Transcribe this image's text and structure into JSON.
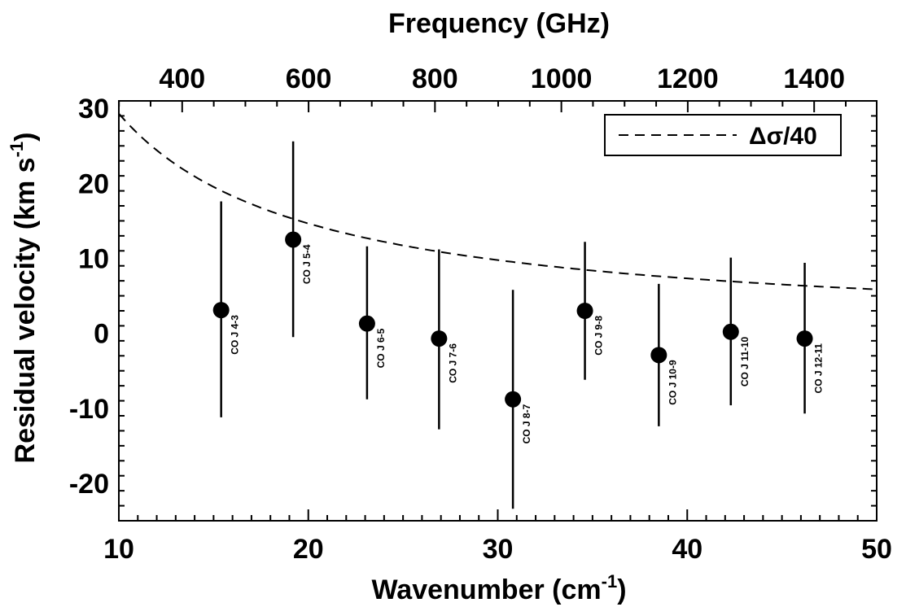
{
  "chart_data": {
    "type": "scatter",
    "xlabel": "Wavenumber (cm",
    "xlabel_sup": "-1",
    "xlabel_tail": ")",
    "ylabel": "Residual velocity (km s",
    "ylabel_sup": "-1",
    "ylabel_tail": ")",
    "top_xlabel": "Frequency (GHz)",
    "xlim": [
      10,
      50
    ],
    "ylim": [
      -25,
      31
    ],
    "x_ticks": [
      10,
      20,
      30,
      40,
      50
    ],
    "y_ticks": [
      -20,
      -10,
      0,
      10,
      20,
      30
    ],
    "top_ticks": [
      400,
      600,
      800,
      1000,
      1200,
      1400
    ],
    "top_axis_scale_ghz_per_cm1": 29.9792458,
    "legend": {
      "label": "Δσ/40",
      "position": "top-right",
      "style": "dashed"
    },
    "curve": {
      "name": "Δσ/40",
      "formula_constant": 293,
      "note_formula": "y = 293 / x"
    },
    "points": [
      {
        "x": 15.4,
        "y": 3.1,
        "yerr_low": -11.2,
        "yerr_high": 17.6,
        "label": "CO J 4-3"
      },
      {
        "x": 19.2,
        "y": 12.5,
        "yerr_low": -0.5,
        "yerr_high": 25.6,
        "label": "CO J 5-4"
      },
      {
        "x": 23.1,
        "y": 1.3,
        "yerr_low": -8.8,
        "yerr_high": 11.6,
        "label": "CO J 6-5"
      },
      {
        "x": 26.9,
        "y": -0.7,
        "yerr_low": -12.8,
        "yerr_high": 11.2,
        "label": "CO J 7-6"
      },
      {
        "x": 30.8,
        "y": -8.8,
        "yerr_low": -23.4,
        "yerr_high": 5.8,
        "label": "CO J 8-7"
      },
      {
        "x": 34.6,
        "y": 3.0,
        "yerr_low": -6.2,
        "yerr_high": 12.2,
        "label": "CO J 9-8"
      },
      {
        "x": 38.5,
        "y": -2.9,
        "yerr_low": -12.4,
        "yerr_high": 6.6,
        "label": "CO J 10-9"
      },
      {
        "x": 42.3,
        "y": 0.2,
        "yerr_low": -9.6,
        "yerr_high": 10.1,
        "label": "CO J 11-10"
      },
      {
        "x": 46.2,
        "y": -0.7,
        "yerr_low": -10.7,
        "yerr_high": 9.4,
        "label": "CO J 12-11"
      }
    ]
  }
}
